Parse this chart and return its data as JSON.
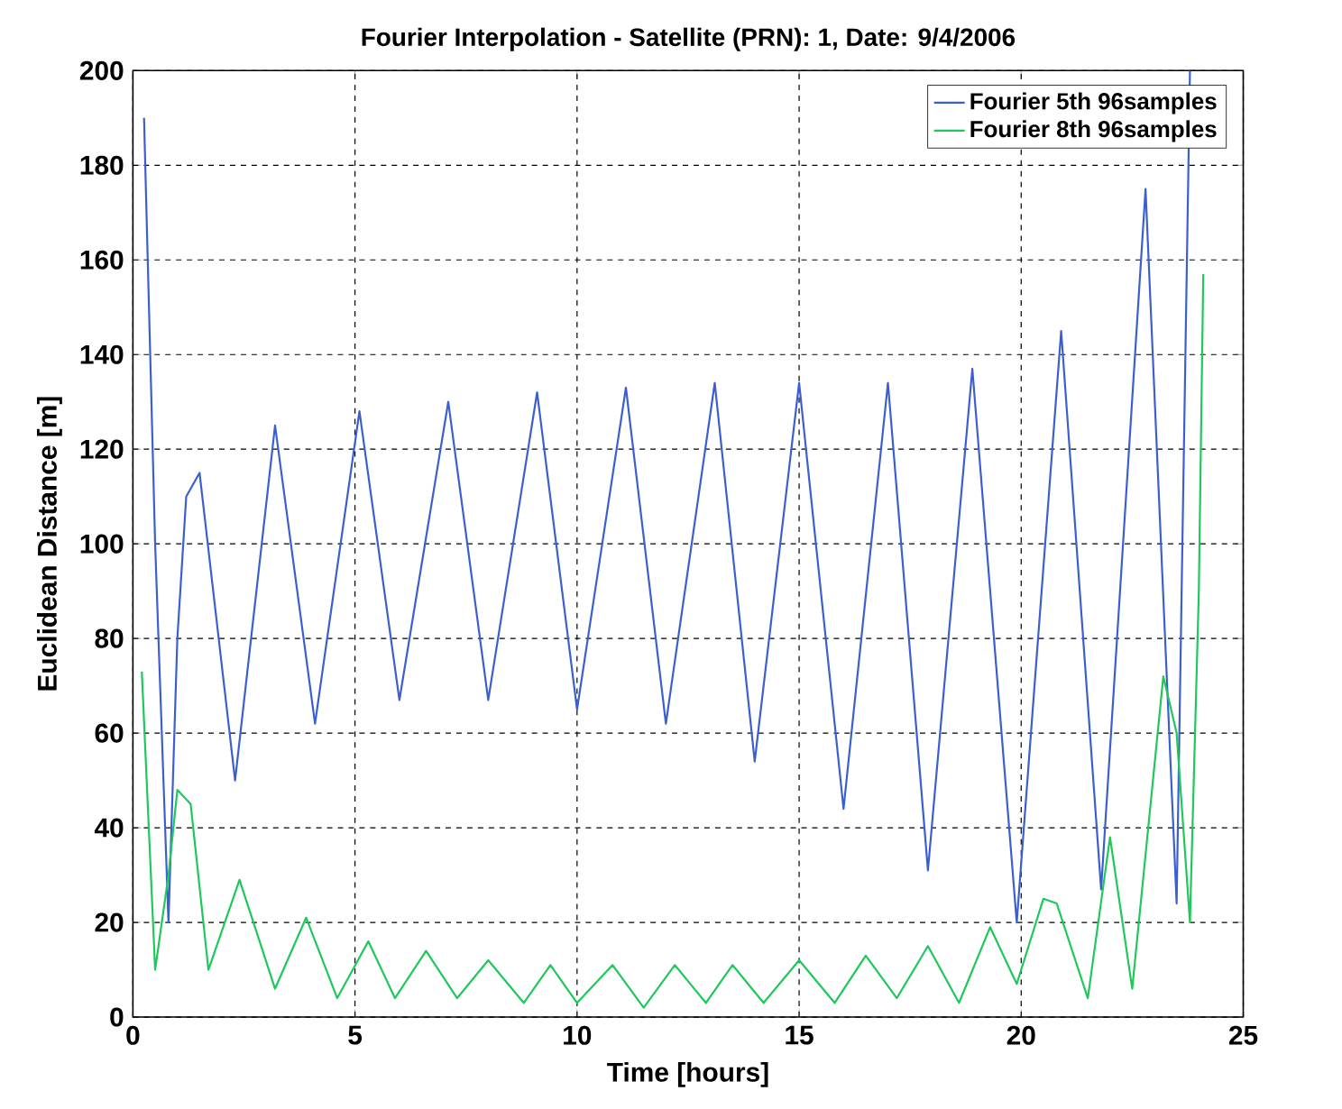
{
  "chart_data": {
    "type": "line",
    "title": "Fourier Interpolation - Satellite (PRN): 1, Date: 9/4/2006",
    "xlabel": "Time [hours]",
    "ylabel": "Euclidean Distance [m]",
    "series": [
      {
        "name": "Fourier 5th 96samples",
        "color": "#3b5fd0",
        "x": [
          0.25,
          0.5,
          0.8,
          1.0,
          1.2,
          1.5,
          2.3,
          3.2,
          4.1,
          5.1,
          6.0,
          7.1,
          8.0,
          9.1,
          10.0,
          11.1,
          12.0,
          13.1,
          14.0,
          15.0,
          16.0,
          17.0,
          17.9,
          18.9,
          19.9,
          20.9,
          21.8,
          22.8,
          23.5,
          23.8
        ],
        "values": [
          190,
          100,
          20,
          80,
          110,
          115,
          50,
          125,
          62,
          128,
          67,
          130,
          67,
          132,
          65,
          133,
          62,
          134,
          54,
          134,
          44,
          134,
          31,
          137,
          20,
          145,
          27,
          175,
          24,
          200
        ]
      },
      {
        "name": "Fourier 8th 96samples",
        "color": "#1ec85a",
        "x": [
          0.2,
          0.5,
          0.8,
          1.0,
          1.3,
          1.7,
          2.4,
          3.2,
          3.9,
          4.6,
          5.3,
          5.9,
          6.6,
          7.3,
          8.0,
          8.8,
          9.4,
          10.0,
          10.8,
          11.5,
          12.2,
          12.9,
          13.5,
          14.2,
          15.0,
          15.8,
          16.5,
          17.2,
          17.9,
          18.6,
          19.3,
          19.9,
          20.5,
          20.8,
          21.5,
          22.0,
          22.5,
          23.2,
          23.5,
          23.8,
          24.0,
          24.1
        ],
        "values": [
          73,
          10,
          30,
          48,
          45,
          10,
          29,
          6,
          21,
          4,
          16,
          4,
          14,
          4,
          12,
          3,
          11,
          3,
          11,
          2,
          11,
          3,
          11,
          3,
          12,
          3,
          13,
          4,
          15,
          3,
          19,
          7,
          25,
          24,
          4,
          38,
          6,
          72,
          60,
          20,
          90,
          157
        ]
      }
    ],
    "xlim": [
      0,
      25
    ],
    "ylim": [
      0,
      200
    ],
    "xticks": [
      0,
      5,
      10,
      15,
      20,
      25
    ],
    "yticks": [
      0,
      20,
      40,
      60,
      80,
      100,
      120,
      140,
      160,
      180,
      200
    ],
    "grid": true,
    "legend": "top right",
    "line_style": "solid",
    "marker": "none"
  }
}
